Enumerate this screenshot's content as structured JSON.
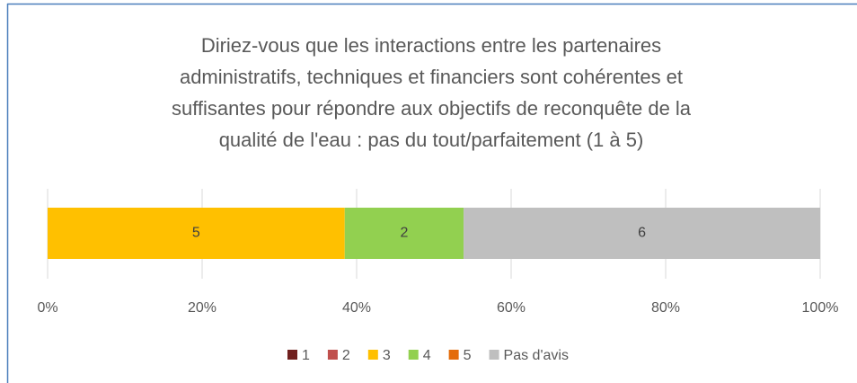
{
  "chart_data": {
    "type": "bar",
    "orientation": "horizontal",
    "stacked": "percent",
    "title": [
      "Diriez-vous que les interactions entre les partenaires",
      "administratifs, techniques et financiers sont cohérentes et",
      "suffisantes pour répondre aux objectifs de reconquête de la",
      "qualité de l'eau : pas du tout/parfaitement (1 à 5)"
    ],
    "categories": [
      null
    ],
    "series": [
      {
        "name": "1",
        "color": "#70201e",
        "values": [
          0
        ]
      },
      {
        "name": "2",
        "color": "#c0504d",
        "values": [
          0
        ]
      },
      {
        "name": "3",
        "color": "#ffc000",
        "values": [
          5
        ]
      },
      {
        "name": "4",
        "color": "#92d050",
        "values": [
          2
        ]
      },
      {
        "name": "5",
        "color": "#e46c0a",
        "values": [
          0
        ]
      },
      {
        "name": "Pas d'avis",
        "color": "#bfbfbf",
        "values": [
          6
        ]
      }
    ],
    "xlim": [
      0,
      100
    ],
    "xticks": [
      {
        "value": 0,
        "label": "0%"
      },
      {
        "value": 20,
        "label": "20%"
      },
      {
        "value": 40,
        "label": "40%"
      },
      {
        "value": 60,
        "label": "60%"
      },
      {
        "value": 80,
        "label": "80%"
      },
      {
        "value": 100,
        "label": "100%"
      }
    ],
    "grid": true,
    "legend": "bottom"
  }
}
